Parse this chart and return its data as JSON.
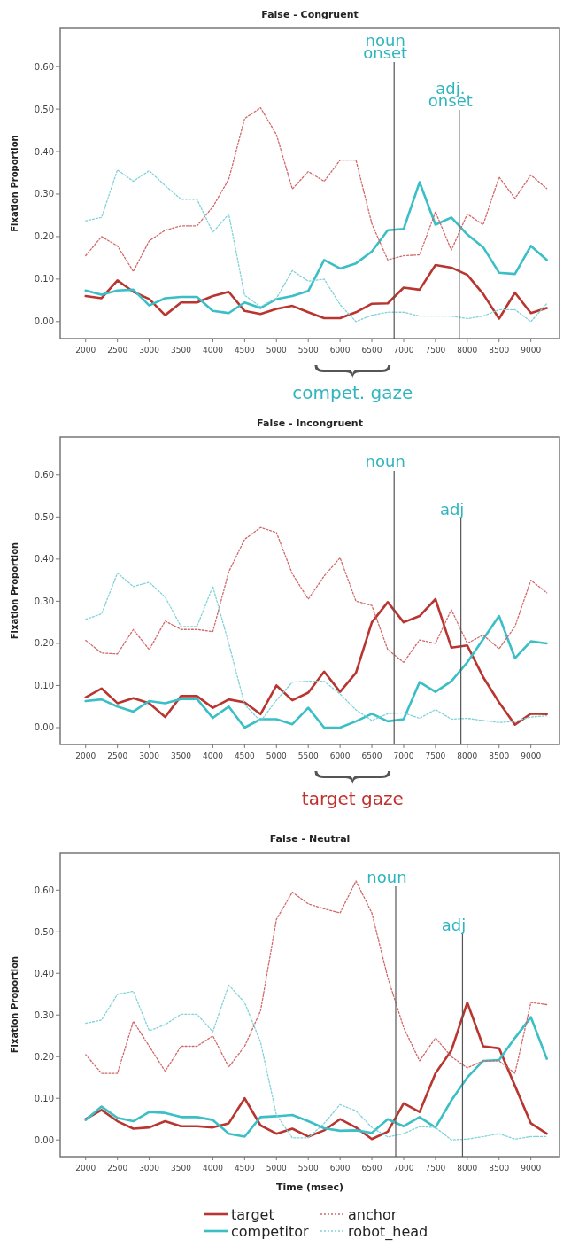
{
  "chart_data": [
    {
      "type": "line",
      "title": "False - Congruent",
      "ylabel": "Fixation Proportion",
      "x": [
        2000,
        2250,
        2500,
        2750,
        3000,
        3250,
        3500,
        3750,
        4000,
        4250,
        4500,
        4750,
        5000,
        5250,
        5500,
        5750,
        6000,
        6250,
        6500,
        6750,
        7000,
        7250,
        7500,
        7750,
        8000,
        8250,
        8500,
        8750,
        9000,
        9250
      ],
      "xlim": [
        1600,
        9450
      ],
      "xticks": [
        2000,
        2500,
        3000,
        3500,
        4000,
        4500,
        5000,
        5500,
        6000,
        6500,
        7000,
        7500,
        8000,
        8500,
        9000
      ],
      "ylim": [
        -0.04,
        0.69
      ],
      "yticks": [
        {
          "value": 0,
          "label": "0.00"
        },
        {
          "value": 0.1,
          "label": "0.10"
        },
        {
          "value": 0.2,
          "label": "0.20"
        },
        {
          "value": 0.3,
          "label": "0.30"
        },
        {
          "value": 0.4,
          "label": "0.40"
        },
        {
          "value": 0.5,
          "label": "0.50"
        },
        {
          "value": 0.6,
          "label": "0.60"
        }
      ],
      "series": [
        {
          "color": "#b83530",
          "line_style": "solid",
          "values": [
            0.06,
            0.055,
            0.097,
            0.07,
            0.053,
            0.015,
            0.045,
            0.045,
            0.06,
            0.07,
            0.025,
            0.018,
            0.03,
            0.037,
            0.022,
            0.008,
            0.008,
            0.022,
            0.042,
            0.043,
            0.08,
            0.075,
            0.133,
            0.127,
            0.11,
            0.065,
            0.007,
            0.068,
            0.02,
            0.032
          ]
        },
        {
          "color": "#3bbfc6",
          "line_style": "solid",
          "values": [
            0.073,
            0.063,
            0.073,
            0.075,
            0.038,
            0.055,
            0.058,
            0.058,
            0.025,
            0.02,
            0.045,
            0.032,
            0.053,
            0.06,
            0.072,
            0.145,
            0.125,
            0.137,
            0.165,
            0.215,
            0.218,
            0.328,
            0.228,
            0.245,
            0.205,
            0.175,
            0.115,
            0.112,
            0.178,
            0.145
          ]
        },
        {
          "color": "#d0686a",
          "line_style": "dotted",
          "values": [
            0.155,
            0.2,
            0.178,
            0.118,
            0.19,
            0.215,
            0.225,
            0.225,
            0.27,
            0.335,
            0.478,
            0.503,
            0.44,
            0.312,
            0.353,
            0.33,
            0.38,
            0.38,
            0.23,
            0.145,
            0.155,
            0.157,
            0.258,
            0.168,
            0.253,
            0.228,
            0.34,
            0.29,
            0.345,
            0.313
          ]
        },
        {
          "color": "#7fd3d8",
          "line_style": "dotted",
          "values": [
            0.237,
            0.245,
            0.357,
            0.33,
            0.355,
            0.32,
            0.288,
            0.288,
            0.21,
            0.253,
            0.062,
            0.035,
            0.055,
            0.12,
            0.095,
            0.1,
            0.04,
            0.0,
            0.015,
            0.022,
            0.022,
            0.013,
            0.013,
            0.013,
            0.007,
            0.013,
            0.028,
            0.028,
            0.0,
            0.042
          ]
        }
      ],
      "ref_lines": [
        {
          "axis": "x",
          "value": 6850,
          "label": "noun onset"
        },
        {
          "axis": "x",
          "value": 7875,
          "label": "adj. onset"
        }
      ],
      "annotations": [
        "compet. gaze"
      ]
    },
    {
      "type": "line",
      "title": "False - Incongruent",
      "ylabel": "Fixation Proportion",
      "x": [
        2000,
        2250,
        2500,
        2750,
        3000,
        3250,
        3500,
        3750,
        4000,
        4250,
        4500,
        4750,
        5000,
        5250,
        5500,
        5750,
        6000,
        6250,
        6500,
        6750,
        7000,
        7250,
        7500,
        7750,
        8000,
        8250,
        8500,
        8750,
        9000,
        9250
      ],
      "xlim": [
        1600,
        9450
      ],
      "xticks": [
        2000,
        2500,
        3000,
        3500,
        4000,
        4500,
        5000,
        5500,
        6000,
        6500,
        7000,
        7500,
        8000,
        8500,
        9000
      ],
      "ylim": [
        -0.04,
        0.69
      ],
      "yticks": [
        {
          "value": 0,
          "label": "0.00"
        },
        {
          "value": 0.1,
          "label": "0.10"
        },
        {
          "value": 0.2,
          "label": "0.20"
        },
        {
          "value": 0.3,
          "label": "0.30"
        },
        {
          "value": 0.4,
          "label": "0.40"
        },
        {
          "value": 0.5,
          "label": "0.50"
        },
        {
          "value": 0.6,
          "label": "0.60"
        }
      ],
      "series": [
        {
          "color": "#b83530",
          "line_style": "solid",
          "values": [
            0.072,
            0.093,
            0.058,
            0.07,
            0.058,
            0.025,
            0.075,
            0.075,
            0.047,
            0.067,
            0.06,
            0.032,
            0.1,
            0.065,
            0.083,
            0.133,
            0.085,
            0.13,
            0.25,
            0.298,
            0.25,
            0.265,
            0.305,
            0.19,
            0.195,
            0.12,
            0.06,
            0.007,
            0.033,
            0.032
          ]
        },
        {
          "color": "#3bbfc6",
          "line_style": "solid",
          "values": [
            0.063,
            0.067,
            0.05,
            0.038,
            0.063,
            0.058,
            0.068,
            0.068,
            0.023,
            0.05,
            0.0,
            0.02,
            0.02,
            0.008,
            0.047,
            0.0,
            0.0,
            0.015,
            0.033,
            0.015,
            0.02,
            0.108,
            0.085,
            0.11,
            0.155,
            0.21,
            0.265,
            0.165,
            0.205,
            0.2
          ]
        },
        {
          "color": "#d0686a",
          "line_style": "dotted",
          "values": [
            0.207,
            0.177,
            0.175,
            0.233,
            0.185,
            0.253,
            0.233,
            0.233,
            0.228,
            0.37,
            0.447,
            0.475,
            0.463,
            0.365,
            0.305,
            0.36,
            0.403,
            0.3,
            0.29,
            0.185,
            0.155,
            0.208,
            0.2,
            0.28,
            0.2,
            0.22,
            0.187,
            0.24,
            0.35,
            0.32
          ]
        },
        {
          "color": "#7fd3d8",
          "line_style": "dotted",
          "values": [
            0.257,
            0.27,
            0.367,
            0.335,
            0.345,
            0.31,
            0.24,
            0.24,
            0.335,
            0.2,
            0.055,
            0.015,
            0.065,
            0.108,
            0.11,
            0.11,
            0.08,
            0.042,
            0.017,
            0.033,
            0.035,
            0.022,
            0.043,
            0.02,
            0.022,
            0.017,
            0.012,
            0.015,
            0.025,
            0.028
          ]
        }
      ],
      "ref_lines": [
        {
          "axis": "x",
          "value": 6850,
          "label": "noun"
        },
        {
          "axis": "x",
          "value": 7900,
          "label": "adj"
        }
      ],
      "annotations": [
        "target gaze"
      ]
    },
    {
      "type": "line",
      "title": "False - Neutral",
      "xlabel": "Time (msec)",
      "ylabel": "Fixation Proportion",
      "x": [
        2000,
        2250,
        2500,
        2750,
        3000,
        3250,
        3500,
        3750,
        4000,
        4250,
        4500,
        4750,
        5000,
        5250,
        5500,
        5750,
        6000,
        6250,
        6500,
        6750,
        7000,
        7250,
        7500,
        7750,
        8000,
        8250,
        8500,
        8750,
        9000,
        9250
      ],
      "xlim": [
        1600,
        9450
      ],
      "xticks": [
        2000,
        2500,
        3000,
        3500,
        4000,
        4500,
        5000,
        5500,
        6000,
        6500,
        7000,
        7500,
        8000,
        8500,
        9000
      ],
      "ylim": [
        -0.04,
        0.69
      ],
      "yticks": [
        {
          "value": 0,
          "label": "0.00"
        },
        {
          "value": 0.1,
          "label": "0.10"
        },
        {
          "value": 0.2,
          "label": "0.20"
        },
        {
          "value": 0.3,
          "label": "0.30"
        },
        {
          "value": 0.4,
          "label": "0.40"
        },
        {
          "value": 0.5,
          "label": "0.50"
        },
        {
          "value": 0.6,
          "label": "0.60"
        }
      ],
      "series": [
        {
          "name": "target",
          "color": "#b83530",
          "line_style": "solid",
          "values": [
            0.05,
            0.072,
            0.045,
            0.027,
            0.03,
            0.045,
            0.033,
            0.033,
            0.03,
            0.04,
            0.1,
            0.035,
            0.015,
            0.027,
            0.008,
            0.023,
            0.05,
            0.03,
            0.002,
            0.02,
            0.088,
            0.067,
            0.16,
            0.215,
            0.33,
            0.225,
            0.22,
            0.13,
            0.04,
            0.015
          ]
        },
        {
          "name": "competitor",
          "color": "#3bbfc6",
          "line_style": "solid",
          "values": [
            0.048,
            0.08,
            0.053,
            0.045,
            0.067,
            0.065,
            0.055,
            0.055,
            0.048,
            0.015,
            0.008,
            0.055,
            0.057,
            0.06,
            0.045,
            0.028,
            0.022,
            0.023,
            0.017,
            0.05,
            0.033,
            0.055,
            0.03,
            0.095,
            0.15,
            0.19,
            0.192,
            0.245,
            0.295,
            0.195
          ]
        },
        {
          "name": "anchor",
          "color": "#d0686a",
          "line_style": "dotted",
          "values": [
            0.205,
            0.16,
            0.16,
            0.285,
            0.225,
            0.165,
            0.225,
            0.225,
            0.25,
            0.175,
            0.225,
            0.31,
            0.53,
            0.595,
            0.567,
            0.555,
            0.545,
            0.622,
            0.545,
            0.39,
            0.27,
            0.19,
            0.245,
            0.2,
            0.173,
            0.19,
            0.19,
            0.16,
            0.33,
            0.325
          ]
        },
        {
          "name": "robot_head",
          "color": "#7fd3d8",
          "line_style": "dotted",
          "values": [
            0.28,
            0.288,
            0.35,
            0.357,
            0.262,
            0.277,
            0.302,
            0.302,
            0.26,
            0.372,
            0.33,
            0.235,
            0.06,
            0.005,
            0.005,
            0.04,
            0.085,
            0.07,
            0.03,
            0.007,
            0.015,
            0.032,
            0.03,
            0.0,
            0.002,
            0.008,
            0.015,
            0.002,
            0.008,
            0.008
          ]
        }
      ],
      "ref_lines": [
        {
          "axis": "x",
          "value": 6875,
          "label": "noun"
        },
        {
          "axis": "x",
          "value": 7925,
          "label": "adj"
        }
      ],
      "legend": "bottom"
    }
  ]
}
